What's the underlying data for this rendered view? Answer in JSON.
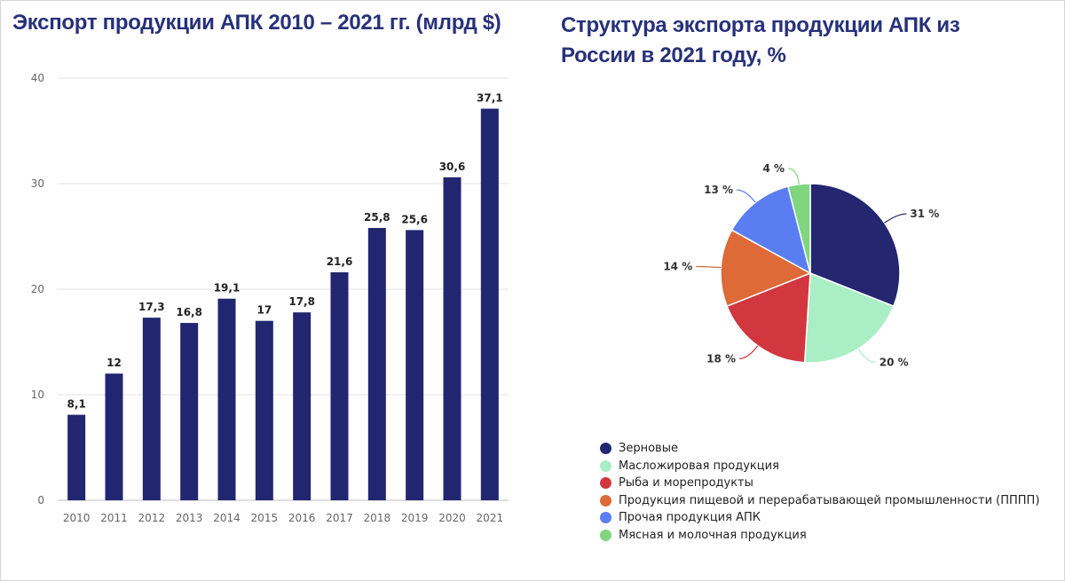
{
  "chart_data": [
    {
      "type": "bar",
      "title": "Экспорт продукции АПК 2010 – 2021 гг. (млрд $)",
      "xlabel": "",
      "ylabel": "",
      "categories": [
        "2010",
        "2011",
        "2012",
        "2013",
        "2014",
        "2015",
        "2016",
        "2017",
        "2018",
        "2019",
        "2020",
        "2021"
      ],
      "values": [
        8.1,
        12,
        17.3,
        16.8,
        19.1,
        17,
        17.8,
        21.6,
        25.8,
        25.6,
        30.6,
        37.1
      ],
      "value_labels": [
        "8,1",
        "12",
        "17,3",
        "16,8",
        "19,1",
        "17",
        "17,8",
        "21,6",
        "25,8",
        "25,6",
        "30,6",
        "37,1"
      ],
      "y_ticks": [
        "0",
        "10",
        "20",
        "30",
        "40"
      ],
      "ylim": [
        0,
        40
      ],
      "grid": true,
      "legend": "none",
      "color": "#222670"
    },
    {
      "type": "pie",
      "title": "Структура экспорта продукции АПК из России в 2021 году, %",
      "legend": "bottom",
      "slices": [
        {
          "name": "Зерновые",
          "value": 31,
          "label": "31 %",
          "color": "#242670"
        },
        {
          "name": "Масложировая продукция",
          "value": 20,
          "label": "20 %",
          "color": "#aaeeC5"
        },
        {
          "name": "Рыба и морепродукты",
          "value": 18,
          "label": "18 %",
          "color": "#d2363f"
        },
        {
          "name": "Продукция пищевой и перерабатывающей промышленности (ПППП)",
          "value": 14,
          "label": "14 %",
          "color": "#dd6a37"
        },
        {
          "name": "Прочая продукция АПК",
          "value": 13,
          "label": "13 %",
          "color": "#5b7df2"
        },
        {
          "name": "Мясная и молочная продукция",
          "value": 4,
          "label": "4 %",
          "color": "#7fd67f"
        }
      ]
    }
  ]
}
